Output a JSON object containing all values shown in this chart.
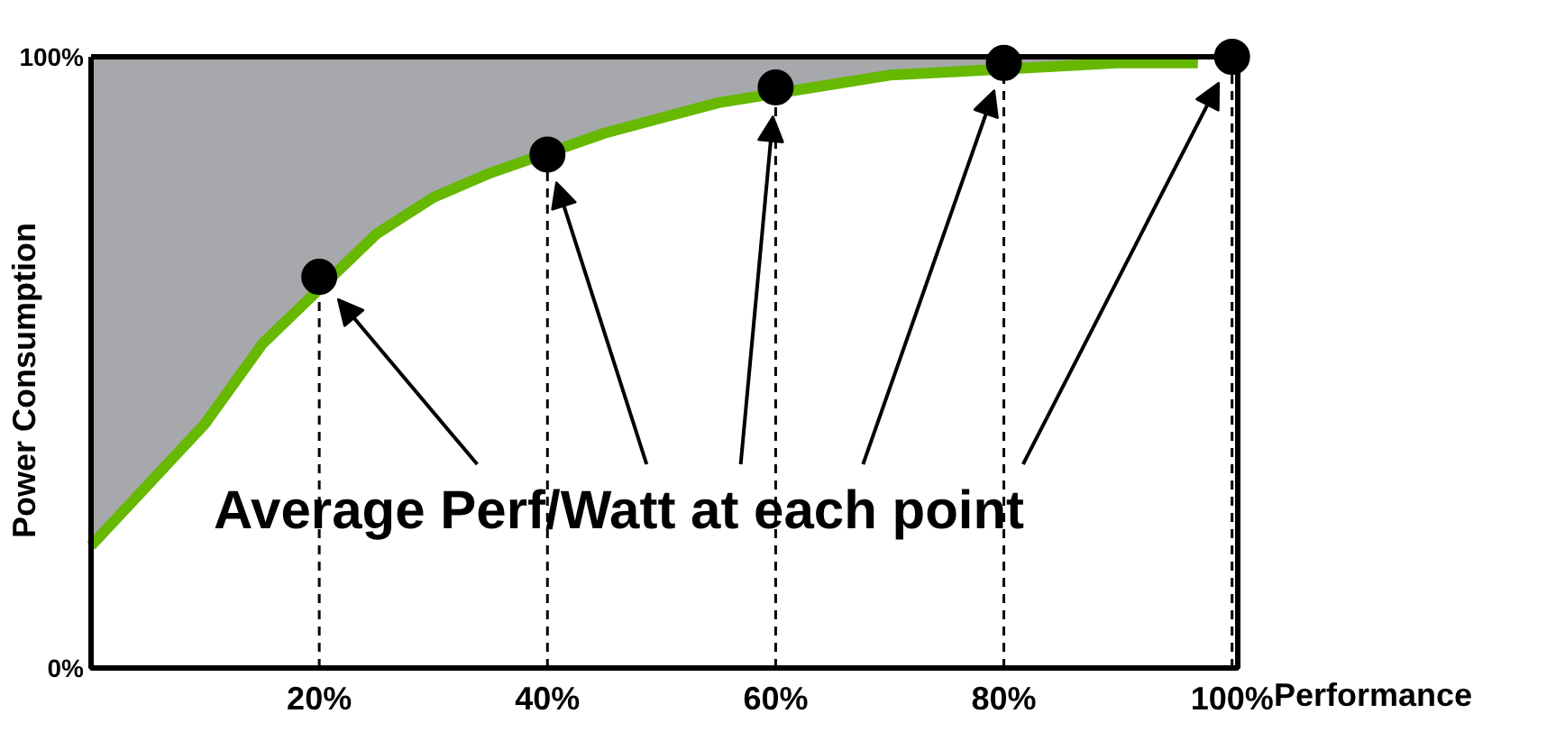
{
  "chart_data": {
    "type": "line",
    "xlabel": "Performance",
    "ylabel": "Power Consumption",
    "annotations": [
      "Average Perf/Watt at each point"
    ],
    "xlim": [
      0,
      100.5
    ],
    "ylim": [
      0,
      100
    ],
    "xticks": [
      {
        "value": 20,
        "label": "20%"
      },
      {
        "value": 40,
        "label": "40%"
      },
      {
        "value": 60,
        "label": "60%"
      },
      {
        "value": 80,
        "label": "80%"
      },
      {
        "value": 100,
        "label": "100%"
      }
    ],
    "yticks": [
      {
        "value": 0,
        "label": "0%"
      },
      {
        "value": 100,
        "label": "100%"
      }
    ],
    "grid": "x",
    "line_style": "solid",
    "series": [
      {
        "color": "#66b800",
        "x": [
          0,
          5,
          10,
          15,
          25,
          30,
          35,
          45,
          50,
          55,
          65,
          70,
          75,
          85,
          90,
          97
        ],
        "values": [
          20,
          30,
          40,
          53,
          71,
          77,
          81,
          87.5,
          90,
          92.5,
          95.5,
          97,
          97.5,
          98.5,
          99,
          99
        ],
        "lower": [
          20,
          30,
          40,
          53,
          71,
          77,
          81,
          87.5,
          90,
          92.5,
          95.5,
          97,
          97.5,
          98.5,
          99,
          99
        ],
        "upper": [
          100,
          100,
          100,
          100,
          100,
          100,
          100,
          100,
          100,
          100,
          100,
          100,
          100,
          100,
          100,
          100
        ]
      },
      {
        "type": "scatter",
        "color": "#000000",
        "marker": "circle",
        "x": [
          20,
          40,
          60,
          80,
          100
        ],
        "values": [
          64,
          84,
          95,
          99,
          100
        ]
      }
    ]
  }
}
